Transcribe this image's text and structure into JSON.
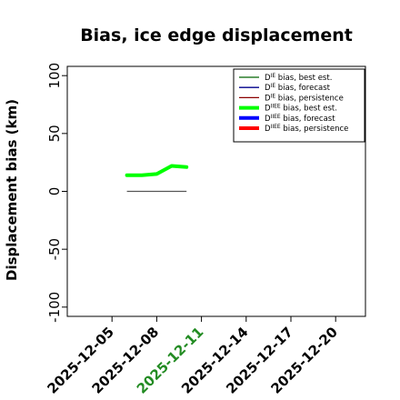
{
  "chart_data": {
    "type": "line",
    "title": "Bias, ice edge displacement",
    "xlabel": "",
    "ylabel": "Displacement bias (km)",
    "xlim": [
      "2025-12-02",
      "2025-12-22"
    ],
    "ylim": [
      -108,
      108
    ],
    "yticks": [
      -100,
      -50,
      0,
      50,
      100
    ],
    "xticks": [
      "2025-12-05",
      "2025-12-08",
      "2025-12-11",
      "2025-12-14",
      "2025-12-17",
      "2025-12-20"
    ],
    "highlighted_xtick": "2025-12-11",
    "highlight_color": "#228B22",
    "grid": false,
    "legend_position": "top-right",
    "series": [
      {
        "name": "D^IE bias, best est.",
        "legend_label": "D",
        "legend_sup": "IE",
        "legend_suffix": " bias, best est.",
        "color": "#006400",
        "width": 1.3,
        "x": [],
        "y": []
      },
      {
        "name": "D^IE bias, forecast",
        "legend_label": "D",
        "legend_sup": "IE",
        "legend_suffix": " bias, forecast",
        "color": "#00008B",
        "width": 1.3,
        "x": [],
        "y": []
      },
      {
        "name": "D^IE bias, persistence",
        "legend_label": "D",
        "legend_sup": "IE",
        "legend_suffix": " bias, persistence",
        "color": "#8B0000",
        "width": 1.3,
        "x": [],
        "y": []
      },
      {
        "name": "D^IIEE bias, best est.",
        "legend_label": "D",
        "legend_sup": "IIEE",
        "legend_suffix": " bias, best est.",
        "color": "#00FF00",
        "width": 4,
        "x": [
          "2025-12-06",
          "2025-12-07",
          "2025-12-08",
          "2025-12-09",
          "2025-12-10"
        ],
        "y": [
          14,
          14,
          15,
          22,
          21
        ]
      },
      {
        "name": "D^IIEE bias, forecast",
        "legend_label": "D",
        "legend_sup": "IIEE",
        "legend_suffix": " bias, forecast",
        "color": "#0000FF",
        "width": 4,
        "x": [],
        "y": []
      },
      {
        "name": "D^IIEE bias, persistence",
        "legend_label": "D",
        "legend_sup": "IIEE",
        "legend_suffix": " bias, persistence",
        "color": "#FF0000",
        "width": 4,
        "x": [],
        "y": []
      }
    ],
    "reference_line": {
      "color": "#555555",
      "x": [
        "2025-12-06",
        "2025-12-10"
      ],
      "y": [
        0,
        0
      ]
    }
  }
}
